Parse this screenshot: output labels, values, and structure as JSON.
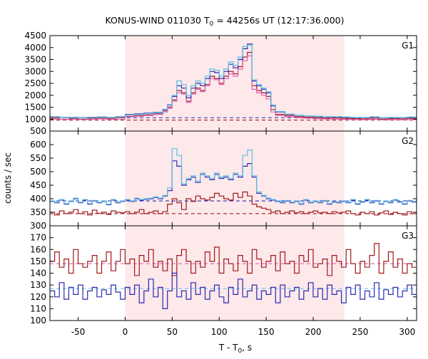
{
  "chart_data": {
    "type": "line",
    "title": "KONUS-WIND 011030 T",
    "title_sub": "0",
    "title_rest": " = 44256s UT (12:17:36.000)",
    "xlabel": "T - T",
    "xlabel_sub": "0",
    "xlabel_rest": ", s",
    "ylabel": "counts / sec",
    "xlim": [
      -80,
      310
    ],
    "x_ticks": [
      -50,
      0,
      50,
      100,
      150,
      200,
      250,
      300
    ],
    "shaded_interval": [
      0,
      233
    ],
    "colors": {
      "shade": "#fde8ea",
      "dark_red": "#a01818",
      "pink": "#e060b8",
      "dark_blue": "#2a2ab0",
      "light_blue": "#5cc0e8",
      "frame": "#000000"
    },
    "panels": [
      {
        "label": "G1",
        "ylim": [
          500,
          4500
        ],
        "y_ticks": [
          500,
          1000,
          1500,
          2000,
          2500,
          3000,
          3500,
          4000,
          4500
        ],
        "bin_x": [
          -80,
          -70,
          -60,
          -50,
          -40,
          -30,
          -20,
          -10,
          0,
          10,
          20,
          30,
          40,
          45,
          50,
          55,
          60,
          65,
          70,
          75,
          80,
          85,
          90,
          95,
          100,
          105,
          110,
          115,
          120,
          125,
          130,
          135,
          140,
          145,
          150,
          155,
          160,
          170,
          180,
          190,
          200,
          210,
          220,
          230,
          240,
          250,
          260,
          270,
          280,
          290,
          300,
          310
        ],
        "series": [
          {
            "name": "",
            "color": "#a01818",
            "values": [
              1050,
              1000,
              1030,
              1000,
              1040,
              1050,
              1030,
              1060,
              1120,
              1150,
              1180,
              1220,
              1350,
              1500,
              1800,
              2200,
              2100,
              1750,
              2100,
              2300,
              2200,
              2450,
              2800,
              2700,
              2500,
              2800,
              3000,
              2900,
              3200,
              3600,
              3800,
              2400,
              2200,
              2100,
              1950,
              1400,
              1200,
              1150,
              1100,
              1080,
              1060,
              1040,
              1050,
              1030,
              1020,
              1010,
              1040,
              1000,
              1020,
              1010,
              1030
            ]
          },
          {
            "name": "",
            "color": "#e060b8",
            "values": [
              1000,
              990,
              1000,
              980,
              1000,
              1010,
              990,
              1000,
              1100,
              1120,
              1150,
              1200,
              1300,
              1450,
              1750,
              2100,
              2050,
              1700,
              2050,
              2250,
              2150,
              2400,
              2700,
              2650,
              2450,
              2700,
              2900,
              2800,
              3100,
              3450,
              3650,
              2250,
              2100,
              2000,
              1850,
              1300,
              1150,
              1100,
              1060,
              1040,
              1020,
              1010,
              1000,
              990,
              980,
              980,
              990,
              970,
              980,
              970,
              980
            ]
          },
          {
            "name": "",
            "color": "#2a2ab0",
            "values": [
              1100,
              1080,
              1070,
              1060,
              1080,
              1090,
              1070,
              1100,
              1200,
              1220,
              1250,
              1280,
              1400,
              1600,
              1950,
              2400,
              2300,
              1900,
              2300,
              2500,
              2400,
              2700,
              3000,
              2950,
              2700,
              3000,
              3300,
              3150,
              3500,
              3950,
              4150,
              2600,
              2400,
              2250,
              2100,
              1550,
              1300,
              1200,
              1150,
              1130,
              1110,
              1090,
              1100,
              1080,
              1070,
              1060,
              1090,
              1050,
              1070,
              1060,
              1080
            ]
          },
          {
            "name": "",
            "color": "#5cc0e8",
            "values": [
              1090,
              1070,
              1060,
              1050,
              1070,
              1080,
              1060,
              1090,
              1180,
              1200,
              1230,
              1260,
              1380,
              1580,
              2000,
              2600,
              2450,
              2000,
              2400,
              2600,
              2500,
              2800,
              3100,
              3050,
              2800,
              3100,
              3400,
              3250,
              3600,
              4050,
              4100,
              2650,
              2450,
              2300,
              2150,
              1600,
              1320,
              1210,
              1160,
              1140,
              1120,
              1100,
              1110,
              1090,
              1080,
              1070,
              1100,
              1060,
              1080,
              1070,
              1090
            ]
          }
        ],
        "backgrounds": [
          {
            "color": "#a01818",
            "value": 960
          },
          {
            "color": "#2a2ab0",
            "value": 1060
          }
        ]
      },
      {
        "label": "G2",
        "ylim": [
          300,
          650
        ],
        "y_ticks": [
          300,
          350,
          400,
          450,
          500,
          550,
          600
        ],
        "bin_x": [
          -80,
          -75,
          -70,
          -65,
          -60,
          -55,
          -50,
          -45,
          -40,
          -35,
          -30,
          -25,
          -20,
          -15,
          -10,
          -5,
          0,
          5,
          10,
          15,
          20,
          25,
          30,
          35,
          40,
          45,
          50,
          55,
          60,
          65,
          70,
          75,
          80,
          85,
          90,
          95,
          100,
          105,
          110,
          115,
          120,
          125,
          130,
          135,
          140,
          145,
          150,
          155,
          160,
          165,
          170,
          175,
          180,
          185,
          190,
          195,
          200,
          205,
          210,
          215,
          220,
          225,
          230,
          235,
          240,
          245,
          250,
          255,
          260,
          265,
          270,
          275,
          280,
          285,
          290,
          295,
          300,
          305,
          310
        ],
        "series": [
          {
            "name": "",
            "color": "#a01818",
            "values": [
              350,
              340,
              355,
              345,
              350,
              360,
              345,
              352,
              340,
              358,
              346,
              350,
              342,
              355,
              350,
              348,
              352,
              345,
              350,
              360,
              345,
              350,
              355,
              345,
              352,
              380,
              400,
              385,
              360,
              400,
              390,
              410,
              400,
              395,
              405,
              420,
              410,
              400,
              395,
              420,
              405,
              425,
              410,
              380,
              370,
              365,
              360,
              350,
              355,
              345,
              350,
              355,
              348,
              352,
              345,
              350,
              355,
              348,
              350,
              345,
              352,
              348,
              350,
              355,
              345,
              340,
              350,
              345,
              352,
              340,
              348,
              355,
              342,
              350,
              345,
              340,
              352,
              345
            ]
          },
          {
            "name": "",
            "color": "#2a2ab0",
            "values": [
              390,
              385,
              395,
              380,
              390,
              400,
              385,
              395,
              380,
              392,
              385,
              390,
              378,
              395,
              385,
              390,
              395,
              390,
              400,
              395,
              398,
              400,
              405,
              400,
              410,
              430,
              540,
              520,
              450,
              470,
              480,
              460,
              490,
              480,
              470,
              490,
              475,
              480,
              470,
              490,
              480,
              520,
              530,
              480,
              420,
              410,
              400,
              395,
              390,
              385,
              392,
              385,
              390,
              380,
              395,
              385,
              390,
              385,
              392,
              380,
              388,
              385,
              390,
              385,
              395,
              380,
              388,
              395,
              385,
              392,
              380,
              390,
              385,
              395,
              388,
              380,
              392,
              388
            ]
          },
          {
            "name": "",
            "color": "#5cc0e8",
            "values": [
              392,
              387,
              397,
              382,
              392,
              402,
              387,
              397,
              382,
              394,
              387,
              392,
              380,
              397,
              387,
              392,
              397,
              392,
              402,
              397,
              400,
              402,
              407,
              402,
              412,
              440,
              585,
              560,
              455,
              475,
              485,
              465,
              495,
              485,
              475,
              495,
              480,
              485,
              475,
              495,
              485,
              560,
              580,
              485,
              425,
              412,
              402,
              397,
              392,
              387,
              394,
              387,
              392,
              382,
              397,
              387,
              392,
              387,
              394,
              382,
              390,
              387,
              392,
              387,
              397,
              382,
              390,
              397,
              387,
              394,
              382,
              392,
              387,
              397,
              390,
              382,
              394,
              390
            ]
          }
        ],
        "backgrounds": [
          {
            "color": "#a01818",
            "value": 345
          },
          {
            "color": "#2a2ab0",
            "value": 392
          }
        ]
      },
      {
        "label": "G3",
        "ylim": [
          100,
          180
        ],
        "y_ticks": [
          100,
          110,
          120,
          130,
          140,
          150,
          160,
          170
        ],
        "bin_x": [
          -80,
          -75,
          -70,
          -65,
          -60,
          -55,
          -50,
          -45,
          -40,
          -35,
          -30,
          -25,
          -20,
          -15,
          -10,
          -5,
          0,
          5,
          10,
          15,
          20,
          25,
          30,
          35,
          40,
          45,
          50,
          55,
          60,
          65,
          70,
          75,
          80,
          85,
          90,
          95,
          100,
          105,
          110,
          115,
          120,
          125,
          130,
          135,
          140,
          145,
          150,
          155,
          160,
          165,
          170,
          175,
          180,
          185,
          190,
          195,
          200,
          205,
          210,
          215,
          220,
          225,
          230,
          235,
          240,
          245,
          250,
          255,
          260,
          265,
          270,
          275,
          280,
          285,
          290,
          295,
          300,
          305,
          310
        ],
        "series": [
          {
            "name": "",
            "color": "#a01818",
            "values": [
              150,
              158,
              145,
              152,
              140,
              160,
              148,
              145,
              150,
              155,
              140,
              150,
              158,
              142,
              150,
              160,
              148,
              152,
              138,
              155,
              150,
              160,
              145,
              150,
              142,
              152,
              138,
              155,
              160,
              150,
              140,
              150,
              145,
              158,
              150,
              162,
              140,
              152,
              148,
              142,
              155,
              150,
              140,
              160,
              152,
              145,
              150,
              155,
              142,
              158,
              148,
              150,
              140,
              155,
              150,
              160,
              145,
              148,
              152,
              138,
              155,
              150,
              145,
              160,
              148,
              140,
              150,
              145,
              155,
              165,
              140,
              150,
              158,
              145,
              152,
              140,
              148,
              145
            ]
          },
          {
            "name": "",
            "color": "#2a2ab0",
            "values": [
              125,
              120,
              132,
              118,
              128,
              122,
              130,
              118,
              125,
              128,
              120,
              126,
              122,
              130,
              124,
              118,
              128,
              122,
              130,
              115,
              125,
              135,
              120,
              128,
              110,
              125,
              140,
              120,
              125,
              118,
              132,
              122,
              128,
              118,
              125,
              130,
              120,
              115,
              128,
              122,
              135,
              120,
              125,
              130,
              118,
              125,
              122,
              128,
              115,
              130,
              120,
              125,
              128,
              118,
              125,
              132,
              120,
              127,
              118,
              130,
              122,
              125,
              115,
              128,
              122,
              130,
              118,
              125,
              120,
              132,
              118,
              126,
              122,
              128,
              120,
              125,
              130,
              122
            ]
          }
        ],
        "backgrounds": [
          {
            "color": "#e060b8",
            "value": 148
          },
          {
            "color": "#5cc0e8",
            "value": 127
          }
        ]
      }
    ]
  }
}
